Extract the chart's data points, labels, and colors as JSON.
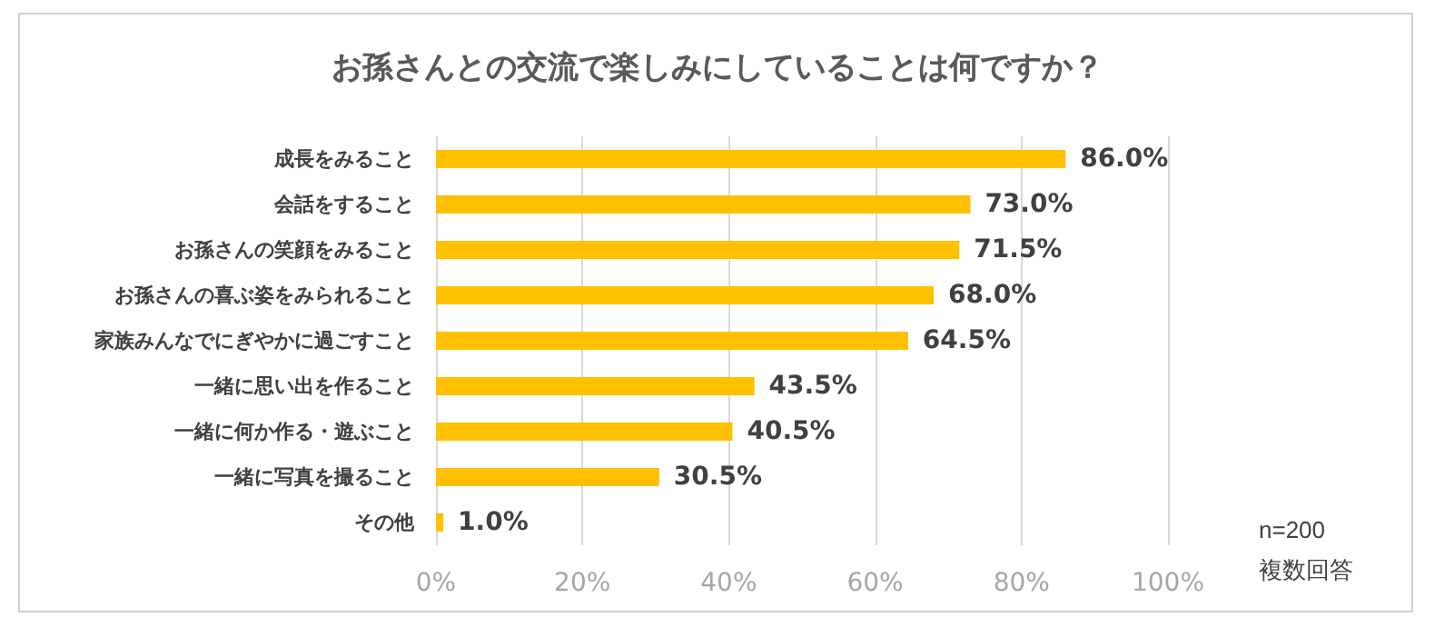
{
  "chart_data": {
    "type": "bar",
    "orientation": "horizontal",
    "title": "お孫さんとの交流で楽しみにしていることは何ですか？",
    "categories": [
      "成長をみること",
      "会話をすること",
      "お孫さんの笑顔をみること",
      "お孫さんの喜ぶ姿をみられること",
      "家族みんなでにぎやかに過ごすこと",
      "一緒に思い出を作ること",
      "一緒に何か作る・遊ぶこと",
      "一緒に写真を撮ること",
      "その他"
    ],
    "values": [
      86.0,
      73.0,
      71.5,
      68.0,
      64.5,
      43.5,
      40.5,
      30.5,
      1.0
    ],
    "value_labels": [
      "86.0%",
      "73.0%",
      "71.5%",
      "68.0%",
      "64.5%",
      "43.5%",
      "40.5%",
      "30.5%",
      "1.0%"
    ],
    "color": "#ffc000",
    "xlim": [
      0,
      100
    ],
    "xticks": [
      {
        "value": 0,
        "label": "0%"
      },
      {
        "value": 20,
        "label": "20%"
      },
      {
        "value": 40,
        "label": "40%"
      },
      {
        "value": 60,
        "label": "60%"
      },
      {
        "value": 80,
        "label": "80%"
      },
      {
        "value": 100,
        "label": "100%"
      }
    ],
    "grid": "x",
    "annotations": [
      "n=200",
      "複数回答"
    ]
  }
}
